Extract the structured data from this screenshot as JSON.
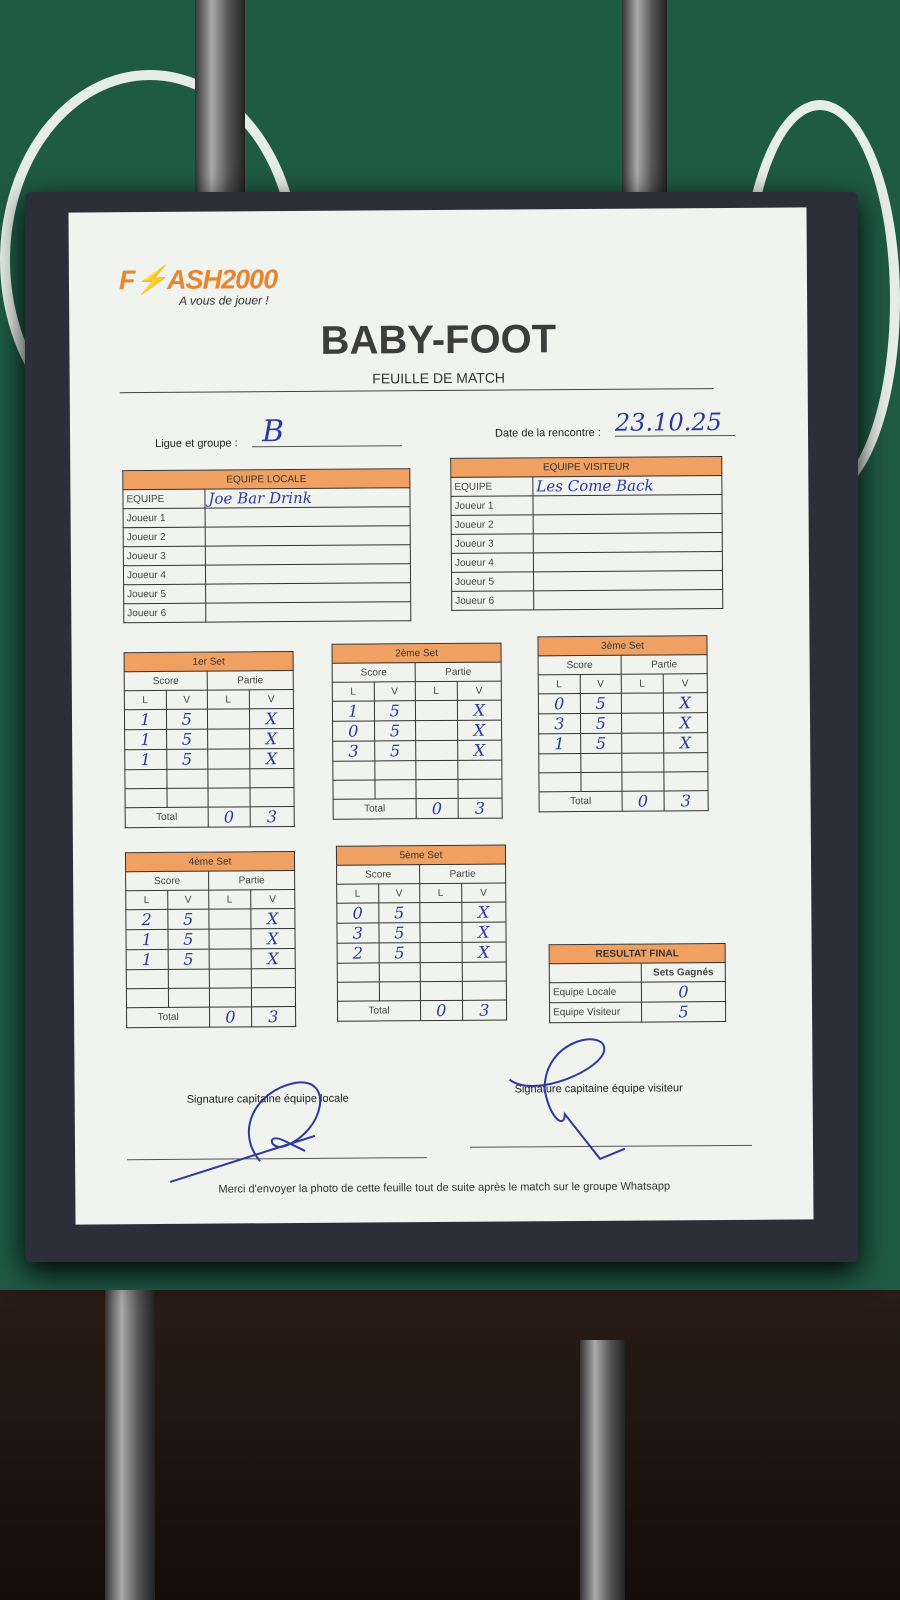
{
  "logo": {
    "brand_part1": "F",
    "brand_part2": "ASH2000",
    "tagline": "A vous de jouer !"
  },
  "header": {
    "title": "BABY-FOOT",
    "subtitle": "FEUILLE DE MATCH"
  },
  "info": {
    "league_label": "Ligue et groupe :",
    "league_value": "B",
    "date_label": "Date de la rencontre :",
    "date_value": "23.10.25"
  },
  "teams": [
    {
      "header": "EQUIPE LOCALE",
      "team_label": "EQUIPE",
      "team_name": "Joe Bar Drink",
      "players": [
        "Joueur 1",
        "Joueur 2",
        "Joueur 3",
        "Joueur 4",
        "Joueur 5",
        "Joueur 6"
      ]
    },
    {
      "header": "EQUIPE VISITEUR",
      "team_label": "EQUIPE",
      "team_name": "Les Come Back",
      "players": [
        "Joueur 1",
        "Joueur 2",
        "Joueur 3",
        "Joueur 4",
        "Joueur 5",
        "Joueur 6"
      ]
    }
  ],
  "set_labels": {
    "score": "Score",
    "partie": "Partie",
    "l": "L",
    "v": "V",
    "total": "Total"
  },
  "sets": [
    {
      "title": "1er Set",
      "rows": [
        [
          "1",
          "5",
          "",
          "X"
        ],
        [
          "1",
          "5",
          "",
          "X"
        ],
        [
          "1",
          "5",
          "",
          "X"
        ],
        [
          "",
          "",
          "",
          ""
        ],
        [
          "",
          "",
          "",
          ""
        ]
      ],
      "total": [
        "0",
        "3"
      ]
    },
    {
      "title": "2ème Set",
      "rows": [
        [
          "1",
          "5",
          "",
          "X"
        ],
        [
          "0",
          "5",
          "",
          "X"
        ],
        [
          "3",
          "5",
          "",
          "X"
        ],
        [
          "",
          "",
          "",
          ""
        ],
        [
          "",
          "",
          "",
          ""
        ]
      ],
      "total": [
        "0",
        "3"
      ]
    },
    {
      "title": "3ème Set",
      "rows": [
        [
          "0",
          "5",
          "",
          "X"
        ],
        [
          "3",
          "5",
          "",
          "X"
        ],
        [
          "1",
          "5",
          "",
          "X"
        ],
        [
          "",
          "",
          "",
          ""
        ],
        [
          "",
          "",
          "",
          ""
        ]
      ],
      "total": [
        "0",
        "3"
      ]
    },
    {
      "title": "4ème Set",
      "rows": [
        [
          "2",
          "5",
          "",
          "X"
        ],
        [
          "1",
          "5",
          "",
          "X"
        ],
        [
          "1",
          "5",
          "",
          "X"
        ],
        [
          "",
          "",
          "",
          ""
        ],
        [
          "",
          "",
          "",
          ""
        ]
      ],
      "total": [
        "0",
        "3"
      ]
    },
    {
      "title": "5ème Set",
      "rows": [
        [
          "0",
          "5",
          "",
          "X"
        ],
        [
          "3",
          "5",
          "",
          "X"
        ],
        [
          "2",
          "5",
          "",
          "X"
        ],
        [
          "",
          "",
          "",
          ""
        ],
        [
          "",
          "",
          "",
          ""
        ]
      ],
      "total": [
        "0",
        "3"
      ]
    }
  ],
  "result": {
    "title": "RESULTAT FINAL",
    "column": "Sets Gagnés",
    "rows": [
      [
        "Equipe Locale",
        "0"
      ],
      [
        "Equipe Visiteur",
        "5"
      ]
    ]
  },
  "signatures": {
    "local": "Signature capitaine équipe locale",
    "visitor": "Signature capitaine équipe visiteur"
  },
  "footer": "Merci d'envoyer la photo de cette feuille tout de suite après le match sur le groupe Whatsapp",
  "colors": {
    "orange": "#f0a061",
    "ink": "#2c3aa0",
    "table_green": "#1f5a45"
  }
}
